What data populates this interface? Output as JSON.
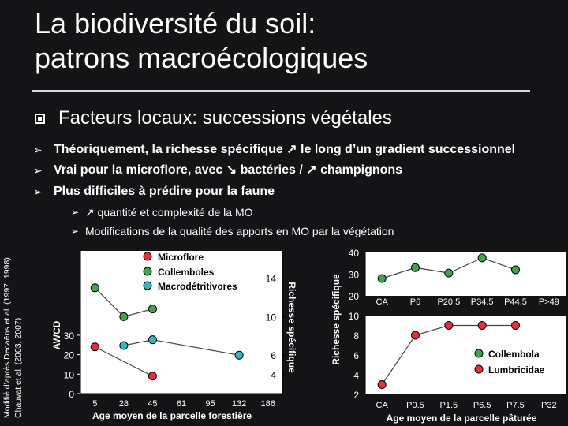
{
  "title": {
    "line1": "La biodiversité du soil:",
    "line2": "patrons macroécologiques"
  },
  "heading": "Facteurs locaux: successions végétales",
  "bullets": [
    "Théoriquement, la richesse spécifique ↗ le long d’un gradient successionnel",
    "Vrai pour la microflore, avec ↘ bactéries / ↗ champignons",
    "Plus difficiles à prédire pour la faune"
  ],
  "sub_bullets": [
    "↗ quantité et complexité de la MO",
    "Modifications de la qualité des apports en MO par la végétation"
  ],
  "side_note": {
    "line1": "Modifié d’après Decaëns et al. (1997, 1998),",
    "line2": "Chauvat et al. (2003, 2007)"
  },
  "colors": {
    "microflore": "#e8303a",
    "collemboles": "#3fa64a",
    "macrodetritivores": "#3ab3c3",
    "lumbricidae": "#e8303a"
  },
  "chart_data": [
    {
      "type": "line",
      "categories": [
        "5",
        "28",
        "45",
        "61",
        "95",
        "132",
        "186"
      ],
      "xlabel": "Age moyen de la parcelle forestière",
      "legend": [
        "Microflore",
        "Collemboles",
        "Macrodétritivores"
      ],
      "left_axis": {
        "label": "AWCD",
        "ticks": [
          "0",
          "10",
          "20",
          "30"
        ],
        "ylim": [
          0,
          30
        ]
      },
      "right_axis": {
        "label": "Richesse spécifique",
        "ticks": [
          "4",
          "6",
          "10",
          "14"
        ]
      },
      "series": [
        {
          "name": "Microflore",
          "axis": "left",
          "values": [
            24,
            null,
            9,
            null,
            null,
            null,
            null
          ]
        },
        {
          "name": "Collemboles",
          "axis": "right",
          "values": [
            13,
            10,
            10.8,
            null,
            null,
            null,
            null
          ]
        },
        {
          "name": "Macrodétritivores",
          "axis": "right",
          "values": [
            null,
            7,
            7.6,
            null,
            null,
            6,
            null
          ]
        }
      ]
    },
    {
      "type": "line",
      "ylabel": "Richesse spécifique",
      "xlabel": "Age moyen de la parcelle pâturée",
      "legend": [
        "Collembola",
        "Lumbricidae"
      ],
      "top": {
        "categories": [
          "CA",
          "P6",
          "P20.5",
          "P34.5",
          "P44.5",
          "P>49"
        ],
        "ticks": [
          "20",
          "30",
          "40"
        ],
        "ylim": [
          20,
          40
        ],
        "series": [
          {
            "name": "Collembola",
            "values": [
              28,
              33,
              30.5,
              37.5,
              32,
              null
            ]
          }
        ]
      },
      "bottom": {
        "categories": [
          "CA",
          "P0.5",
          "P1.5",
          "P6.5",
          "P7.5",
          "P32"
        ],
        "ticks": [
          "2",
          "4",
          "6",
          "8",
          "10"
        ],
        "ylim": [
          2,
          10
        ],
        "series": [
          {
            "name": "Lumbricidae",
            "values": [
              3,
              8,
              9,
              9,
              9,
              null
            ]
          }
        ]
      }
    }
  ]
}
